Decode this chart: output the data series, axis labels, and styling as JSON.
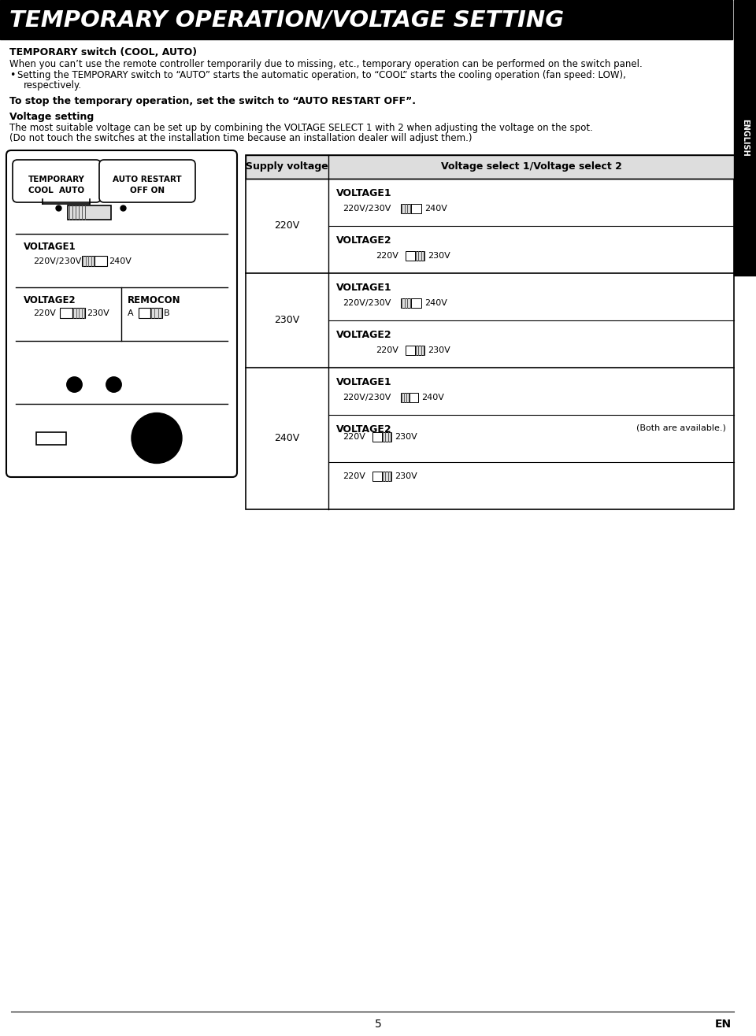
{
  "title": "TEMPORARY OPERATION/VOLTAGE SETTING",
  "title_bg": "#000000",
  "title_color": "#ffffff",
  "page_bg": "#ffffff",
  "sidebar_text": "ENGLISH",
  "sidebar_bg": "#000000",
  "sidebar_color": "#ffffff",
  "section1_title": "TEMPORARY switch (COOL, AUTO)",
  "section1_body": "When you can’t use the remote controller temporarily due to missing, etc., temporary operation can be performed on the switch panel.",
  "bullet1a": "Setting the TEMPORARY switch to “AUTO” starts the automatic operation, to “COOL” starts the cooling operation (fan speed: LOW),",
  "bullet1b": "respectively.",
  "bold_line": "To stop the temporary operation, set the switch to “AUTO RESTART OFF”.",
  "section2_title": "Voltage setting",
  "section2_body1": "The most suitable voltage can be set up by combining the VOLTAGE SELECT 1 with 2 when adjusting the voltage on the spot.",
  "section2_body2": "(Do not touch the switches at the installation time because an installation dealer will adjust them.)",
  "table_col1": "Supply voltage",
  "table_col2": "Voltage select 1/Voltage select 2",
  "page_number": "5",
  "page_right": "EN"
}
